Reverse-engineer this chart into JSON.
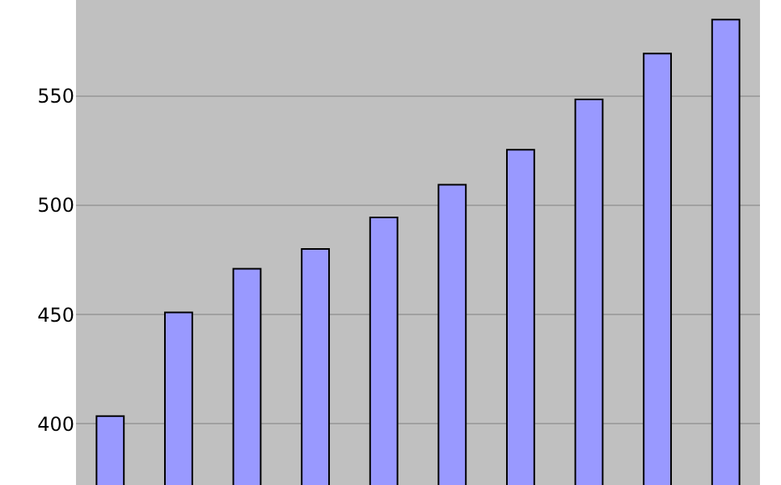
{
  "chart_data": {
    "type": "bar",
    "categories": [
      null,
      null,
      null,
      null,
      null,
      null,
      null,
      null,
      null,
      null
    ],
    "values": [
      403.5,
      451,
      471,
      480,
      494.5,
      509.5,
      525.5,
      548.5,
      569.5,
      585
    ],
    "color": "#9999ff",
    "ylim": [
      372,
      594
    ],
    "yticks": [
      400,
      450,
      500,
      550
    ],
    "grid": "y"
  }
}
